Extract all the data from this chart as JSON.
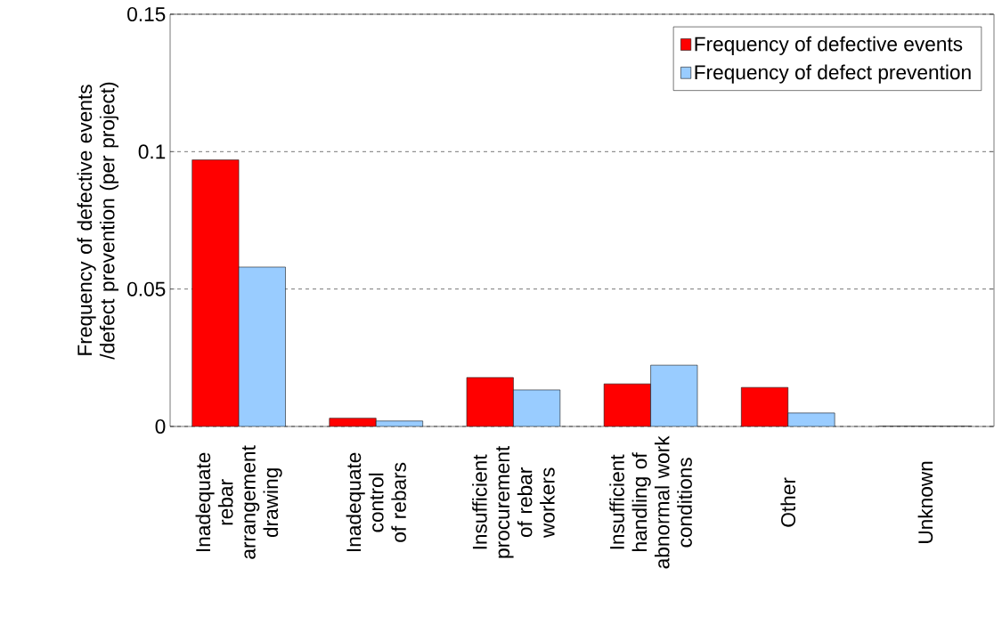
{
  "chart_data": {
    "type": "bar",
    "ylabel": "Frequency of defective events /defect prevention (per project)",
    "categories": [
      "Inadequate rebar arrangement drawing",
      "Inadequate control of rebars",
      "Insufficient procurement of rebar workers",
      "Insufficient handling of abnormal work conditions",
      "Other",
      "Unknown"
    ],
    "series": [
      {
        "name": "Frequency of defective events",
        "color": "#ff0000",
        "values": [
          0.097,
          0.003,
          0.0178,
          0.0155,
          0.0142,
          0
        ]
      },
      {
        "name": "Frequency of defect prevention",
        "color": "#99ccff",
        "values": [
          0.058,
          0.002,
          0.0133,
          0.0223,
          0.0049,
          0
        ]
      }
    ],
    "ylim": [
      0,
      0.15
    ],
    "yticks": [
      0,
      0.05,
      0.1,
      0.15
    ],
    "grid": "y",
    "line_style": "dashed",
    "legend": "top right"
  }
}
